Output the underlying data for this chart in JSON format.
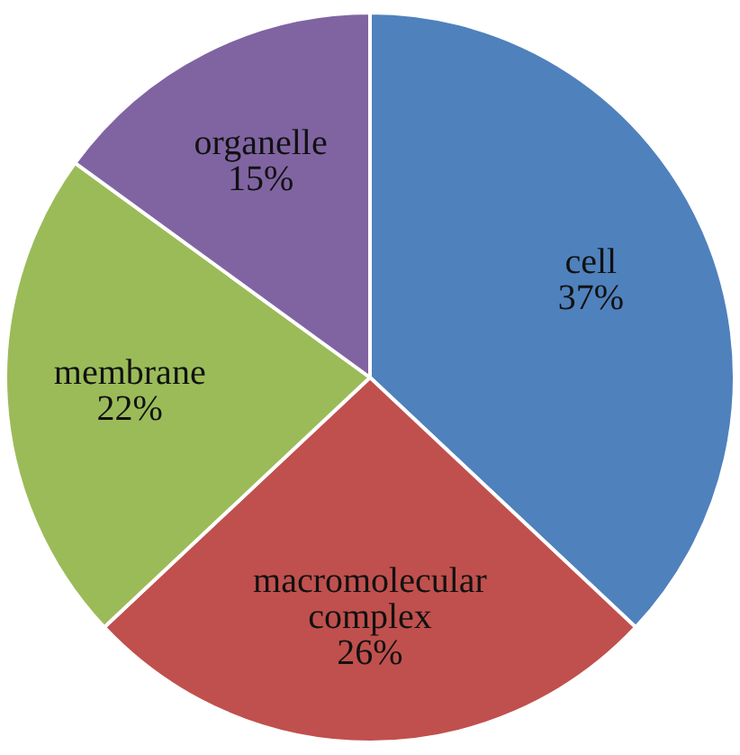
{
  "chart_data": {
    "type": "pie",
    "categories": [
      "cell",
      "macromolecular complex",
      "membrane",
      "organelle"
    ],
    "values": [
      37,
      26,
      22,
      15
    ],
    "value_labels": [
      "37%",
      "26%",
      "22%",
      "15%"
    ],
    "colors": [
      "#4f81bd",
      "#c0504d",
      "#9bbb59",
      "#8064a2"
    ],
    "legend": false
  }
}
